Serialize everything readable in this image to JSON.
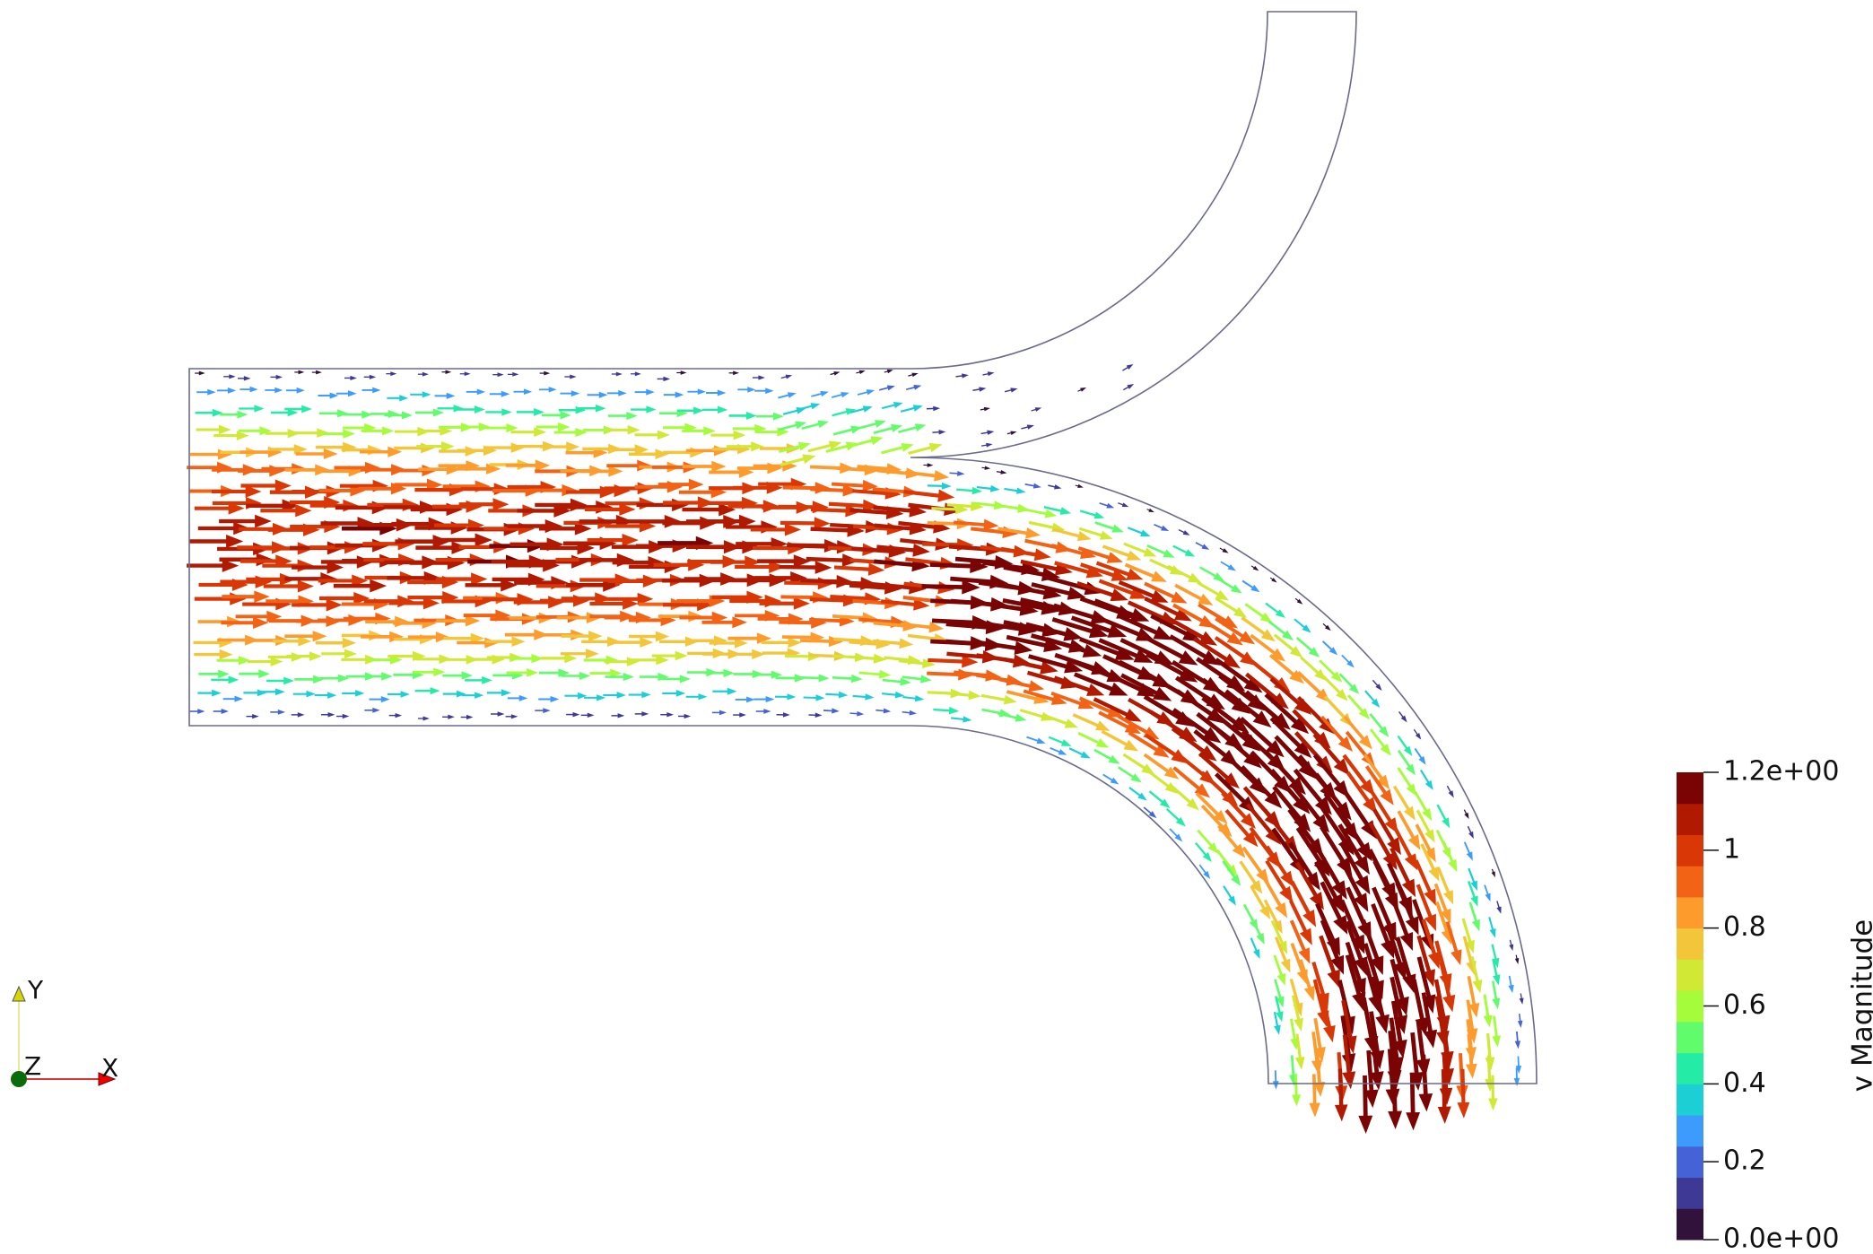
{
  "colorbar": {
    "title": "v Magnitude",
    "range": [
      0,
      1.2
    ],
    "ticks": [
      {
        "value": 1.2,
        "label": "1.2e+00"
      },
      1,
      0.8,
      0.6,
      0.4,
      0.2,
      {
        "value": 0,
        "label": "0.0e+00"
      }
    ],
    "colors": [
      "#30123b",
      "#3e3994",
      "#4662d7",
      "#3e9bfe",
      "#1bcfd4",
      "#24eca6",
      "#61fc6c",
      "#a4fc3b",
      "#d1e834",
      "#f3c63a",
      "#fe9b2d",
      "#f36315",
      "#d93806",
      "#b11901",
      "#7a0403"
    ]
  },
  "axes_triad": {
    "x": "X",
    "y": "Y",
    "z": "Z"
  }
}
